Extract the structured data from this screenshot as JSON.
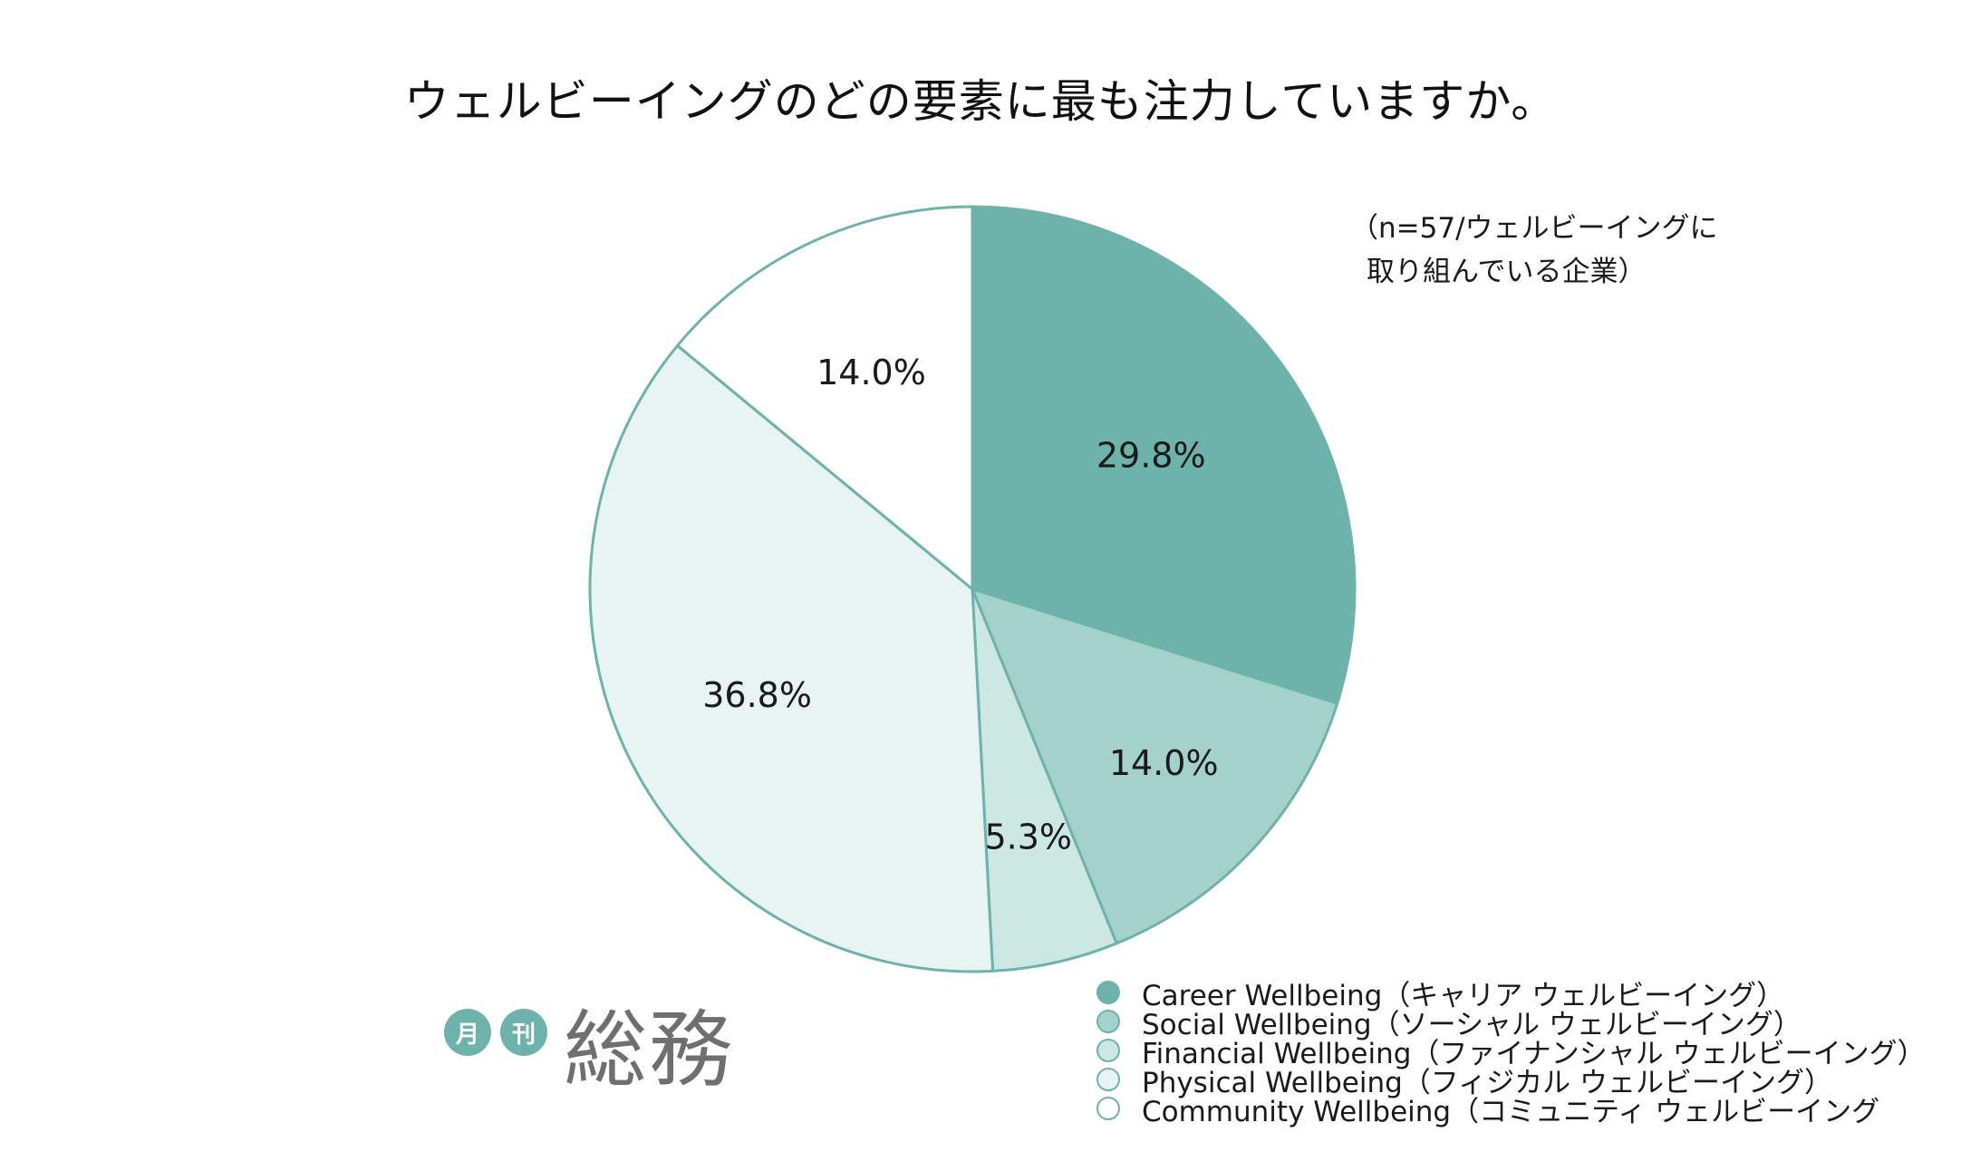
{
  "chart_data": {
    "type": "pie",
    "title": "ウェルビーイングのどの要素に最も注力していますか。",
    "note_lines": [
      "（n=57/ウェルビーイングに",
      "取り組んでいる企業）"
    ],
    "slices": [
      {
        "name": "Career Wellbeing（キャリア ウェルビーイング）",
        "value": 29.8,
        "label": "29.8%",
        "color": "#6db3ab"
      },
      {
        "name": "Social Wellbeing（ソーシャル ウェルビーイング）",
        "value": 14.0,
        "label": "14.0%",
        "color": "#a4d2cb"
      },
      {
        "name": "Financial Wellbeing（ファイナンシャル ウェルビーイング）",
        "value": 5.3,
        "label": "5.3%",
        "color": "#cde7e3"
      },
      {
        "name": "Physical Wellbeing（フィジカル ウェルビーイング）",
        "value": 36.8,
        "label": "36.8%",
        "color": "#e7f4f2"
      },
      {
        "name": "Community Wellbeing（コミュニティ ウェルビーイング",
        "value": 14.0,
        "label": "14.0%",
        "color": "#ffffff"
      }
    ],
    "border_color": "#6db3ab",
    "start": "top",
    "direction": "clockwise",
    "legend_position": "bottom-right"
  },
  "logo": {
    "badge1": "月",
    "badge2": "刊",
    "text": "総務"
  }
}
